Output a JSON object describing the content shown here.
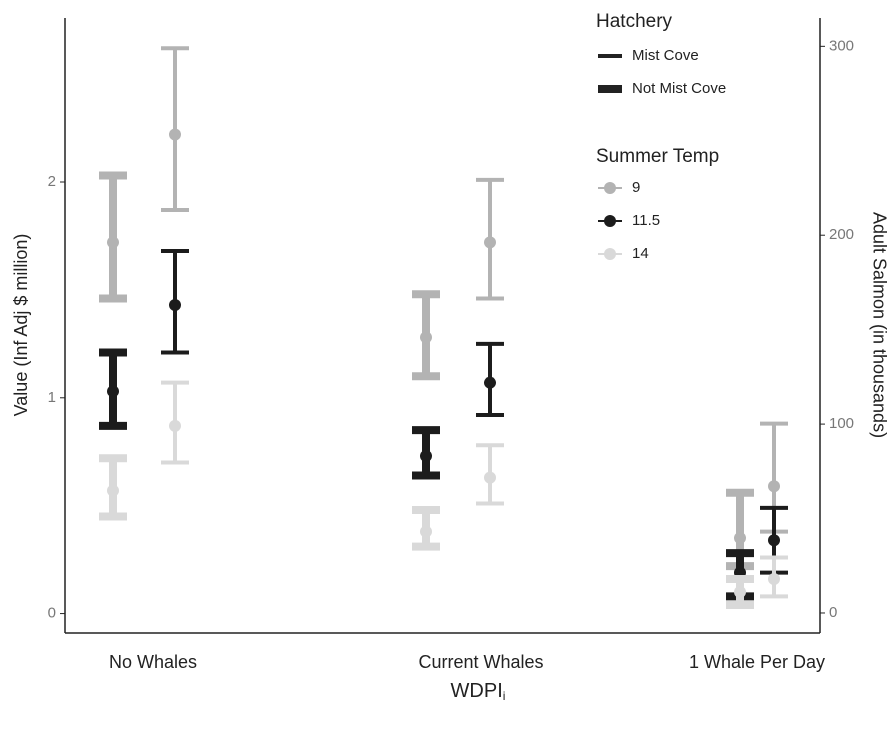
{
  "chart_data": {
    "type": "errorbar",
    "categories": [
      "No Whales",
      "Current Whales",
      "1 Whale Per Day"
    ],
    "x_label": "WDPI",
    "x_label_subscript": "i",
    "y_label": "Value (Inf Adj $ million)",
    "y2_label": "Adult Salmon (in thousands)",
    "ylim": [
      -0.09,
      2.76
    ],
    "yticks": [
      0,
      1,
      2
    ],
    "y2lim": [
      -10.6,
      315
    ],
    "y2ticks": [
      0,
      100,
      200,
      300
    ],
    "hatchery_title": "Hatchery",
    "temp_title": "Summer Temp",
    "temps": [
      {
        "name": "9",
        "color": "#b3b3b3"
      },
      {
        "name": "11.5",
        "color": "#1c1c1c"
      },
      {
        "name": "14",
        "color": "#d9d9d9"
      }
    ],
    "hatcheries": [
      {
        "name": "Mist Cove",
        "line_width": 4,
        "series": [
          {
            "values": [
              2.22,
              1.72,
              0.59
            ],
            "lows": [
              1.87,
              1.46,
              0.38
            ],
            "highs": [
              2.62,
              2.01,
              0.88
            ]
          },
          {
            "values": [
              1.43,
              1.07,
              0.34
            ],
            "lows": [
              1.21,
              0.92,
              0.19
            ],
            "highs": [
              1.68,
              1.25,
              0.49
            ]
          },
          {
            "values": [
              0.87,
              0.63,
              0.16
            ],
            "lows": [
              0.7,
              0.51,
              0.08
            ],
            "highs": [
              1.07,
              0.78,
              0.26
            ]
          }
        ]
      },
      {
        "name": "Not Mist Cove",
        "line_width": 8,
        "series": [
          {
            "values": [
              1.72,
              1.28,
              0.35
            ],
            "lows": [
              1.46,
              1.1,
              0.22
            ],
            "highs": [
              2.03,
              1.48,
              0.56
            ]
          },
          {
            "values": [
              1.03,
              0.73,
              0.19
            ],
            "lows": [
              0.87,
              0.64,
              0.08
            ],
            "highs": [
              1.21,
              0.85,
              0.28
            ]
          },
          {
            "values": [
              0.57,
              0.38,
              0.1
            ],
            "lows": [
              0.45,
              0.31,
              0.04
            ],
            "highs": [
              0.72,
              0.48,
              0.16
            ]
          }
        ]
      }
    ]
  }
}
